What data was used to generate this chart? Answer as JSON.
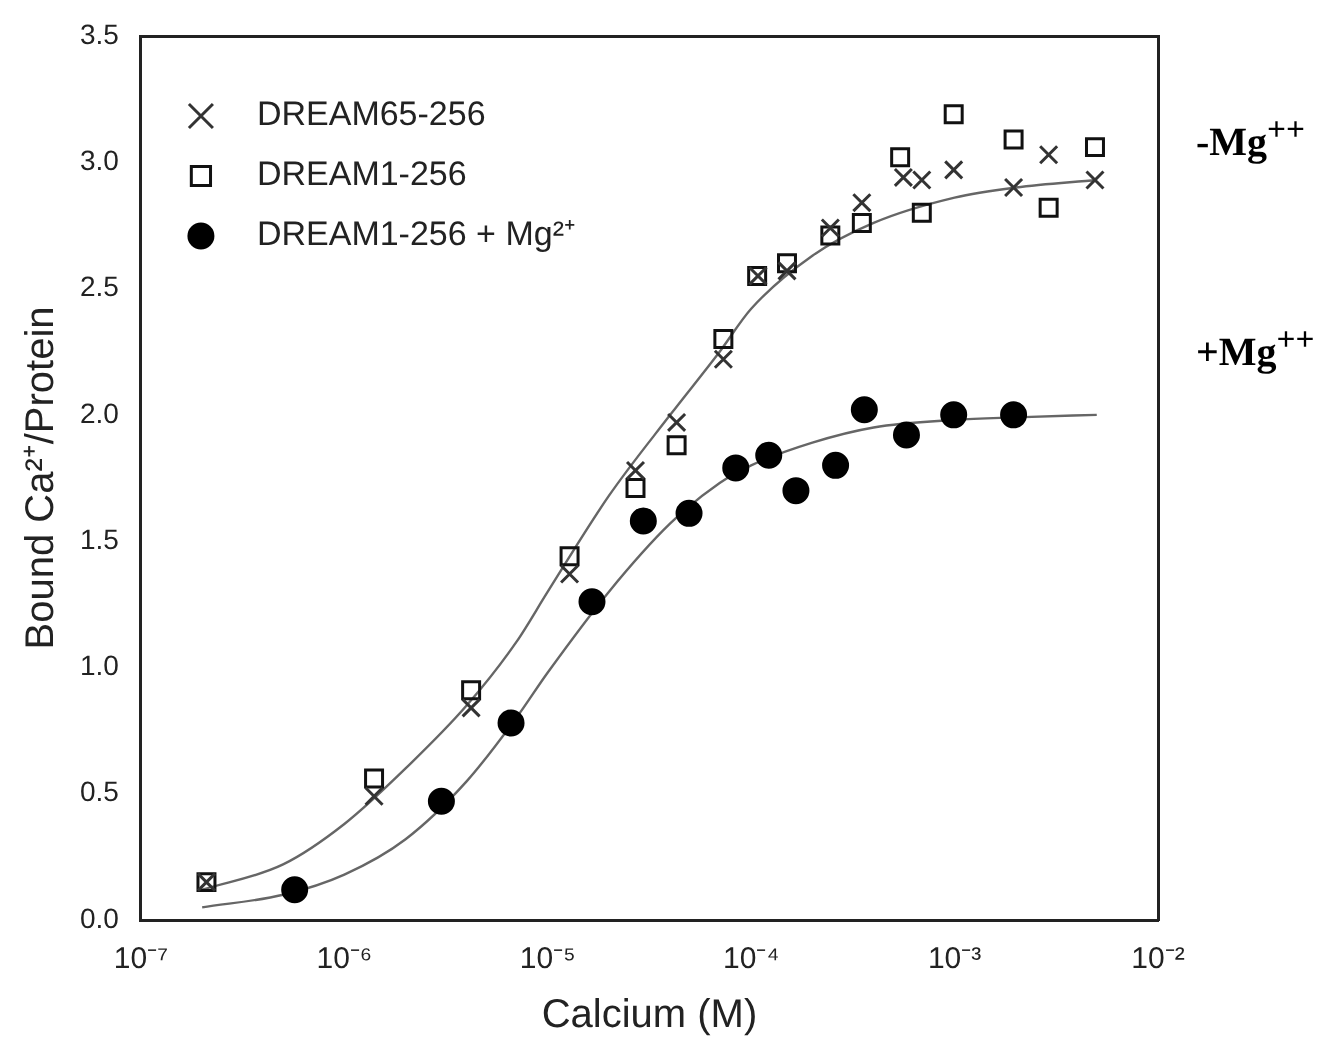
{
  "chart_data": {
    "type": "scatter",
    "xlabel": "Calcium (M)",
    "ylabel": "Bound Ca²⁺/Protein",
    "log": "x",
    "grid": false,
    "legend": "top left",
    "xlim": [
      1e-07,
      0.01
    ],
    "xticks": [
      {
        "value": 1e-07,
        "label": "10⁻⁷"
      },
      {
        "value": 1e-06,
        "label": "10⁻⁶"
      },
      {
        "value": 1e-05,
        "label": "10⁻⁵"
      },
      {
        "value": 0.0001,
        "label": "10⁻⁴"
      },
      {
        "value": 0.001,
        "label": "10⁻³"
      },
      {
        "value": 0.01,
        "label": "10⁻²"
      }
    ],
    "ylim": [
      0,
      3.5
    ],
    "yticks": [
      {
        "value": 0,
        "label": "0.0"
      },
      {
        "value": 0.5,
        "label": "0.5"
      },
      {
        "value": 1,
        "label": "1.0"
      },
      {
        "value": 1.5,
        "label": "1.5"
      },
      {
        "value": 2,
        "label": "2.0"
      },
      {
        "value": 2.5,
        "label": "2.5"
      },
      {
        "value": 3,
        "label": "3.0"
      },
      {
        "value": 3.5,
        "label": "3.5"
      }
    ],
    "annotations": [
      "-Mg$^{++}$",
      "+Mg$^{++}$"
    ],
    "series": [
      {
        "name": "DREAM65-256",
        "color": "#333333",
        "marker": "cross",
        "x": [
          2.1e-07,
          1.4e-06,
          4.2e-06,
          1.28e-05,
          2.7e-05,
          4.3e-05,
          7.3e-05,
          0.000108,
          0.00015,
          0.000245,
          0.00035,
          0.00056,
          0.00069,
          0.00099,
          0.00195,
          0.0029,
          0.0049
        ],
        "values": [
          0.15,
          0.49,
          0.84,
          1.37,
          1.78,
          1.97,
          2.22,
          2.55,
          2.57,
          2.74,
          2.84,
          2.94,
          2.93,
          2.97,
          2.9,
          3.03,
          2.93
        ]
      },
      {
        "name": "DREAM1-256",
        "color": "#111111",
        "marker": "square",
        "x": [
          2.1e-07,
          1.4e-06,
          4.2e-06,
          1.28e-05,
          2.7e-05,
          4.3e-05,
          7.3e-05,
          0.000107,
          0.00015,
          0.000245,
          0.00035,
          0.00054,
          0.00069,
          0.00099,
          0.00195,
          0.0029,
          0.0049
        ],
        "values": [
          0.15,
          0.56,
          0.91,
          1.44,
          1.71,
          1.88,
          2.3,
          2.55,
          2.6,
          2.71,
          2.76,
          3.02,
          2.8,
          3.19,
          3.09,
          2.82,
          3.06
        ]
      },
      {
        "name": "DREAM1-256 + Mg²⁺",
        "color": "#000000",
        "marker": "circle",
        "x": [
          5.7e-07,
          3e-06,
          6.6e-06,
          1.65e-05,
          2.95e-05,
          4.95e-05,
          8.4e-05,
          0.000122,
          0.000166,
          0.00026,
          0.00036,
          0.00058,
          0.00099,
          0.00195
        ],
        "values": [
          0.12,
          0.47,
          0.78,
          1.26,
          1.58,
          1.61,
          1.79,
          1.84,
          1.7,
          1.8,
          2.02,
          1.92,
          2.0,
          2.0
        ]
      },
      {
        "type": "line",
        "color": "#666666",
        "marker": "none",
        "x": [
          2e-07,
          5e-07,
          1e-06,
          2e-06,
          4e-06,
          7e-06,
          1e-05,
          2e-05,
          4e-05,
          7e-05,
          0.0001,
          0.0002,
          0.0004,
          0.001,
          0.002,
          0.005
        ],
        "values": [
          0.12,
          0.22,
          0.38,
          0.6,
          0.85,
          1.1,
          1.3,
          1.68,
          2.0,
          2.25,
          2.42,
          2.63,
          2.76,
          2.86,
          2.9,
          2.93
        ]
      },
      {
        "type": "line",
        "color": "#666666",
        "marker": "none",
        "x": [
          2e-07,
          5e-07,
          1e-06,
          2e-06,
          4e-06,
          7e-06,
          1e-05,
          2e-05,
          4e-05,
          7e-05,
          0.0001,
          0.0002,
          0.0004,
          0.001,
          0.002,
          0.005
        ],
        "values": [
          0.05,
          0.1,
          0.18,
          0.32,
          0.55,
          0.8,
          0.98,
          1.3,
          1.57,
          1.73,
          1.8,
          1.89,
          1.95,
          1.98,
          1.99,
          2.0
        ]
      }
    ]
  }
}
